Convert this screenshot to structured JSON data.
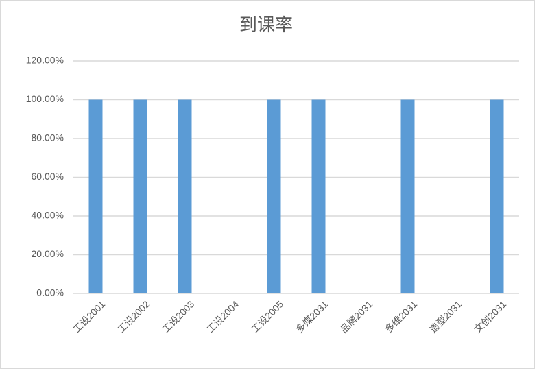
{
  "chart_data": {
    "type": "bar",
    "title": "到课率",
    "categories": [
      "工设2001",
      "工设2002",
      "工设2003",
      "工设2004",
      "工设2005",
      "多媒2031",
      "品牌2031",
      "多维2031",
      "造型2031",
      "文创2031"
    ],
    "values": [
      100,
      100,
      100,
      0,
      100,
      100,
      0,
      100,
      0,
      100
    ],
    "color": "#5b9bd5",
    "ylim": [
      0,
      120
    ],
    "yticks": [
      {
        "value": 0,
        "label": "0.00%"
      },
      {
        "value": 20,
        "label": "20.00%"
      },
      {
        "value": 40,
        "label": "40.00%"
      },
      {
        "value": 60,
        "label": "60.00%"
      },
      {
        "value": 80,
        "label": "80.00%"
      },
      {
        "value": 100,
        "label": "100.00%"
      },
      {
        "value": 120,
        "label": "120.00%"
      }
    ],
    "grid": true
  }
}
